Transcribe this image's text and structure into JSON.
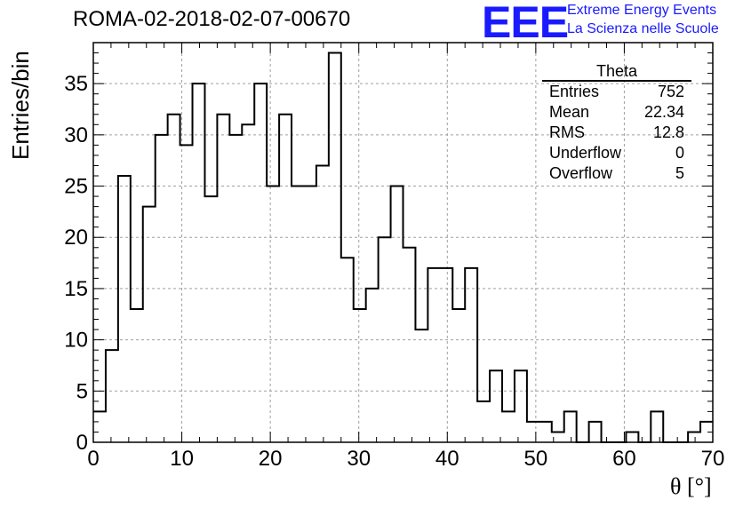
{
  "title": "ROMA-02-2018-02-07-00670",
  "logo": {
    "mark": "EEE",
    "line1": "Extreme Energy Events",
    "line2": "La Scienza nelle Scuole",
    "color": "#1a1aff"
  },
  "stats_box": {
    "title": "Theta",
    "rows": [
      {
        "label": "Entries",
        "value": "752"
      },
      {
        "label": "Mean",
        "value": "22.34"
      },
      {
        "label": "RMS",
        "value": "12.8"
      },
      {
        "label": "Underflow",
        "value": "0"
      },
      {
        "label": "Overflow",
        "value": "5"
      }
    ]
  },
  "chart_data": {
    "type": "bar",
    "histogram": true,
    "xlabel": "θ [°]",
    "ylabel": "Entries/bin",
    "xlim": [
      0,
      70
    ],
    "ylim": [
      0,
      39
    ],
    "grid": true,
    "bin_width": 1.4,
    "bin_edges_start": 0,
    "values": [
      3,
      9,
      26,
      13,
      23,
      30,
      32,
      29,
      35,
      24,
      32,
      30,
      31,
      35,
      25,
      32,
      25,
      25,
      27,
      38,
      18,
      13,
      15,
      20,
      25,
      19,
      11,
      17,
      17,
      13,
      17,
      4,
      7,
      3,
      7,
      2,
      2,
      1,
      3,
      0,
      2,
      0,
      0,
      1,
      0,
      3,
      0,
      0,
      1,
      2
    ],
    "xticks": [
      0,
      10,
      20,
      30,
      40,
      50,
      60,
      70
    ],
    "yticks": [
      0,
      5,
      10,
      15,
      20,
      25,
      30,
      35
    ],
    "line_color": "#000000"
  }
}
